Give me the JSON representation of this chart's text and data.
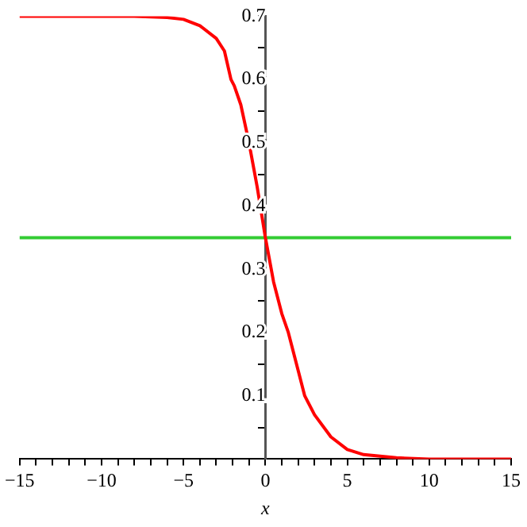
{
  "chart_data": {
    "type": "line",
    "xlabel": "x",
    "xlim": [
      -15,
      15
    ],
    "xticks": [
      -15,
      {
        "value": -14,
        "label": null
      },
      {
        "value": -13,
        "label": null
      },
      {
        "value": -12,
        "label": null
      },
      {
        "value": -11,
        "label": null
      },
      -10,
      {
        "value": -9,
        "label": null
      },
      {
        "value": -8,
        "label": null
      },
      {
        "value": -7,
        "label": null
      },
      {
        "value": -6,
        "label": null
      },
      -5,
      {
        "value": -4,
        "label": null
      },
      {
        "value": -3,
        "label": null
      },
      {
        "value": -2,
        "label": null
      },
      {
        "value": -1,
        "label": null
      },
      0,
      {
        "value": 1,
        "label": null
      },
      {
        "value": 2,
        "label": null
      },
      {
        "value": 3,
        "label": null
      },
      {
        "value": 4,
        "label": null
      },
      5,
      {
        "value": 6,
        "label": null
      },
      {
        "value": 7,
        "label": null
      },
      {
        "value": 8,
        "label": null
      },
      {
        "value": 9,
        "label": null
      },
      10,
      {
        "value": 11,
        "label": null
      },
      {
        "value": 12,
        "label": null
      },
      {
        "value": 13,
        "label": null
      },
      {
        "value": 14,
        "label": null
      },
      15
    ],
    "ylim": [
      0,
      0.7
    ],
    "yticks": [
      {
        "value": 0,
        "label": null
      },
      {
        "value": 0.05,
        "label": null
      },
      0.1,
      {
        "value": 0.15,
        "label": null
      },
      0.2,
      {
        "value": 0.25,
        "label": null
      },
      0.3,
      {
        "value": 0.35,
        "label": null
      },
      0.4,
      {
        "value": 0.45,
        "label": null
      },
      0.5,
      {
        "value": 0.55,
        "label": null
      },
      0.6,
      {
        "value": 0.65,
        "label": null
      },
      0.7
    ],
    "grid": false,
    "legend": false,
    "marker": "none",
    "line_style": "solid",
    "series": [
      {
        "color": "#ff0000",
        "x": [
          -15,
          -8,
          -6,
          -5,
          -4,
          -3,
          -2.5,
          -2.1,
          -1.9,
          -1.5,
          -1,
          -0.5,
          0,
          0.5,
          1,
          1.4,
          2,
          2.4,
          3,
          4,
          5,
          6,
          8,
          10,
          15
        ],
        "values": [
          0.7,
          0.7,
          0.698,
          0.695,
          0.685,
          0.665,
          0.645,
          0.6,
          0.59,
          0.56,
          0.5,
          0.43,
          0.35,
          0.28,
          0.23,
          0.2,
          0.14,
          0.1,
          0.07,
          0.035,
          0.015,
          0.007,
          0.002,
          0,
          0
        ]
      },
      {
        "color": "#33cc33",
        "x": [
          -15,
          15
        ],
        "values": [
          0.35,
          0.35
        ]
      }
    ]
  }
}
